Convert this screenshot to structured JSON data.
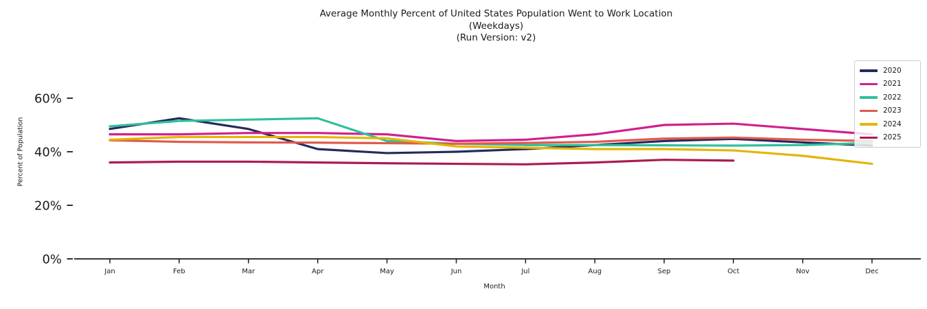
{
  "title": {
    "line1": "Average Monthly Percent of United States Population Went to Work Location",
    "line2": "(Weekdays)",
    "line3": "(Run Version: v2)"
  },
  "chart_data": {
    "type": "line",
    "title": "Average Monthly Percent of United States Population Went to Work Location (Weekdays) (Run Version: v2)",
    "xlabel": "Month",
    "ylabel": "Percent of Population",
    "categories": [
      "Jan",
      "Feb",
      "Mar",
      "Apr",
      "May",
      "Jun",
      "Jul",
      "Aug",
      "Sep",
      "Oct",
      "Nov",
      "Dec"
    ],
    "y_ticks": [
      "0%",
      "20%",
      "40%",
      "60%"
    ],
    "ylim": [
      0,
      75
    ],
    "grid": false,
    "legend_position": "upper right",
    "units": "percent",
    "series": [
      {
        "name": "2020",
        "color": "#252A5C",
        "values": [
          48.5,
          52.5,
          48.5,
          41.0,
          39.5,
          40.0,
          41.0,
          42.5,
          44.0,
          44.8,
          43.5,
          42.3
        ]
      },
      {
        "name": "2021",
        "color": "#D1208C",
        "values": [
          46.5,
          46.5,
          47.0,
          47.0,
          46.5,
          44.0,
          44.5,
          46.5,
          50.0,
          50.5,
          48.5,
          46.5
        ]
      },
      {
        "name": "2022",
        "color": "#2FBF9C",
        "values": [
          49.5,
          51.5,
          52.0,
          52.5,
          44.0,
          43.0,
          42.5,
          42.5,
          42.4,
          42.3,
          42.5,
          43.3
        ]
      },
      {
        "name": "2023",
        "color": "#E05A4D",
        "values": [
          44.3,
          43.7,
          43.5,
          43.4,
          43.2,
          43.0,
          43.3,
          43.7,
          44.9,
          45.3,
          44.5,
          44.0
        ]
      },
      {
        "name": "2024",
        "color": "#E3B505",
        "values": [
          44.5,
          45.5,
          45.5,
          45.5,
          45.0,
          42.0,
          41.5,
          41.0,
          41.0,
          40.5,
          38.5,
          35.5
        ]
      },
      {
        "name": "2025",
        "color": "#AA1B55",
        "values": [
          36.0,
          36.3,
          36.3,
          36.0,
          35.7,
          35.5,
          35.3,
          36.0,
          37.0,
          36.7,
          null,
          null
        ]
      }
    ]
  }
}
